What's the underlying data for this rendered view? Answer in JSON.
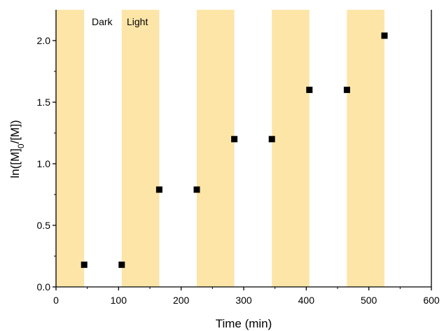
{
  "chart_data": {
    "type": "scatter",
    "title": "",
    "xlabel": "Time (min)",
    "ylabel": {
      "prefix": "ln([M]",
      "subscript": "0",
      "suffix": "/[M])"
    },
    "xlim": [
      0,
      600
    ],
    "ylim": [
      0,
      2.25
    ],
    "x_ticks": [
      "0",
      "100",
      "200",
      "300",
      "400",
      "500",
      "600"
    ],
    "y_ticks": [
      "0.0",
      "0.5",
      "1.0",
      "1.5",
      "2.0"
    ],
    "grid": false,
    "legend": "none",
    "annotations": [
      "Dark",
      "Light"
    ],
    "light_bands": [
      [
        0,
        45
      ],
      [
        105,
        165
      ],
      [
        225,
        285
      ],
      [
        345,
        405
      ],
      [
        465,
        525
      ]
    ],
    "series": [
      {
        "x": [
          45,
          105,
          165,
          225,
          285,
          345,
          405,
          465,
          525
        ],
        "y": [
          0.18,
          0.18,
          0.79,
          0.79,
          1.2,
          1.2,
          1.6,
          1.6,
          2.04
        ]
      }
    ],
    "colors": {
      "band": "#fde5a8",
      "marker": "#000000",
      "axis": "#000000"
    }
  }
}
